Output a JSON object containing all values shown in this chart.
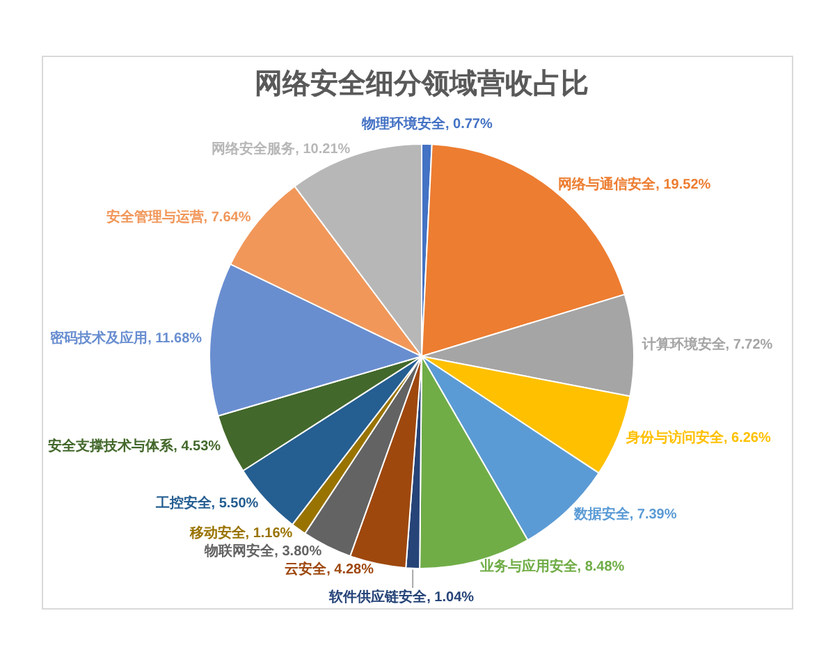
{
  "chart_data": {
    "type": "pie",
    "title": "网络安全细分领域营收占比",
    "categories": [
      "物理环境安全",
      "网络与通信安全",
      "计算环境安全",
      "身份与访问安全",
      "数据安全",
      "业务与应用安全",
      "软件供应链安全",
      "云安全",
      "物联网安全",
      "移动安全",
      "工控安全",
      "安全支撑技术与体系",
      "密码技术及应用",
      "安全管理与运营",
      "网络安全服务"
    ],
    "values": [
      0.77,
      19.52,
      7.72,
      6.26,
      7.39,
      8.48,
      1.04,
      4.28,
      3.8,
      1.16,
      5.5,
      4.53,
      11.68,
      7.64,
      10.21
    ],
    "value_labels": [
      "0.77%",
      "19.52%",
      "7.72%",
      "6.26%",
      "7.39%",
      "8.48%",
      "1.04%",
      "4.28%",
      "3.80%",
      "1.16%",
      "5.50%",
      "4.53%",
      "11.68%",
      "7.64%",
      "10.21%"
    ],
    "colors": [
      "#4472c4",
      "#ed7d31",
      "#a5a5a5",
      "#ffc000",
      "#5b9bd5",
      "#70ad47",
      "#264478",
      "#9e480e",
      "#636363",
      "#997300",
      "#255e91",
      "#43682b",
      "#698ed0",
      "#f1975a",
      "#b7b7b7"
    ],
    "legend": false
  }
}
